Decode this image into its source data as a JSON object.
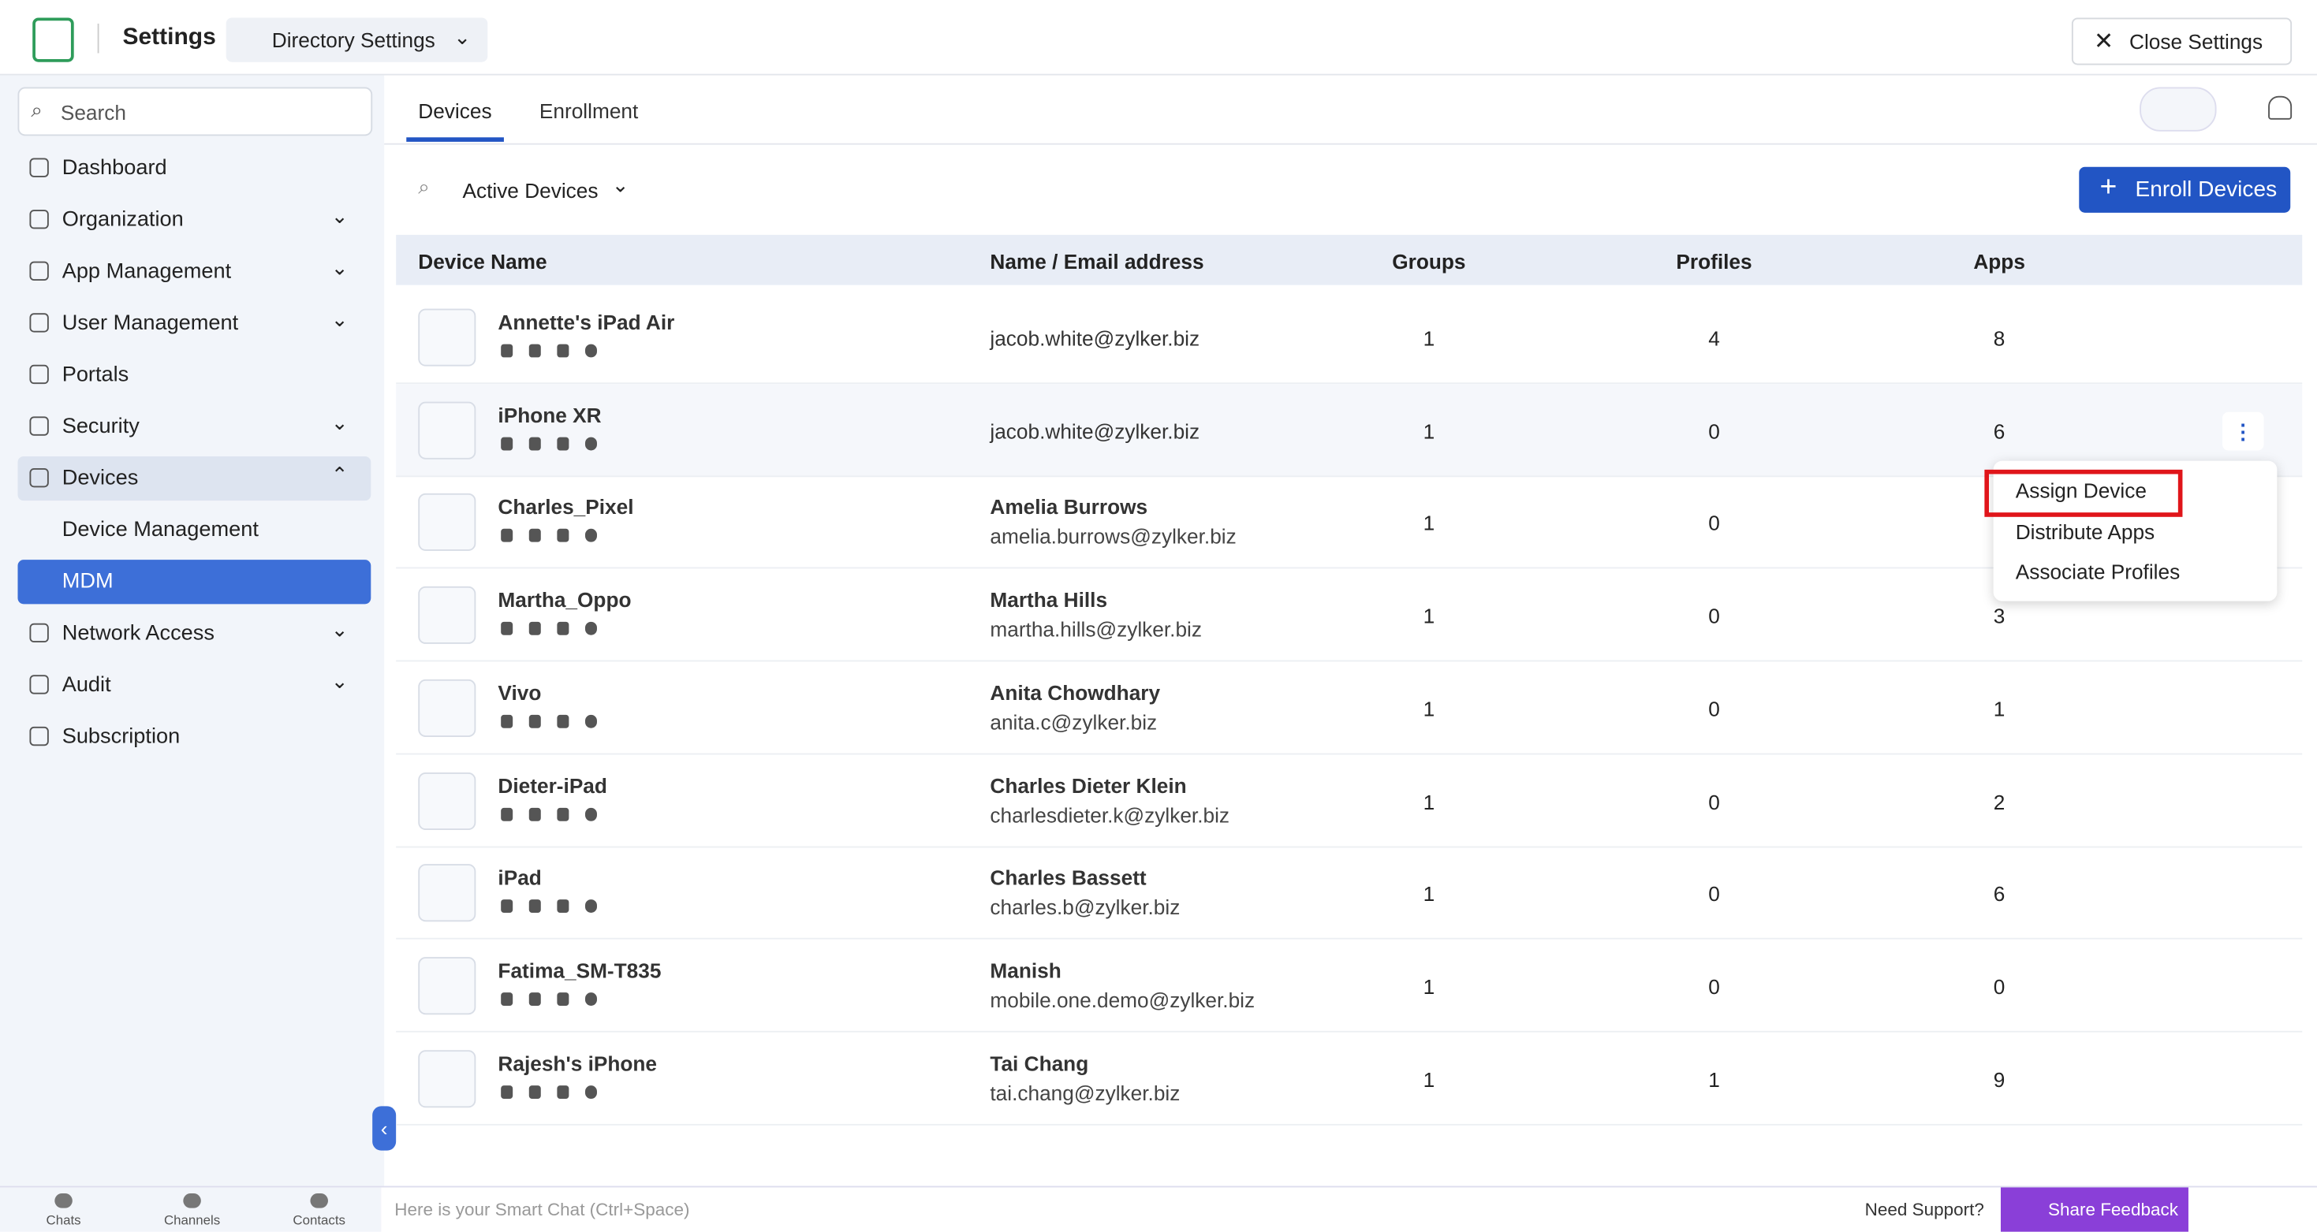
{
  "header": {
    "app": "Settings",
    "directory": "Directory Settings",
    "close": "Close Settings"
  },
  "sidebar": {
    "search": "Search",
    "items": [
      {
        "label": "Dashboard",
        "expand": false
      },
      {
        "label": "Organization",
        "expand": true
      },
      {
        "label": "App Management",
        "expand": true
      },
      {
        "label": "User Management",
        "expand": true
      },
      {
        "label": "Portals",
        "expand": false
      },
      {
        "label": "Security",
        "expand": true
      },
      {
        "label": "Devices",
        "expand": true,
        "open": true
      },
      {
        "label": "Device Management",
        "sub": true
      },
      {
        "label": "MDM",
        "sub": true,
        "active": true
      },
      {
        "label": "Network Access",
        "expand": true
      },
      {
        "label": "Audit",
        "expand": true
      },
      {
        "label": "Subscription",
        "expand": false
      }
    ]
  },
  "tabs": [
    "Devices",
    "Enrollment"
  ],
  "filter": "Active Devices",
  "enroll_button": "Enroll Devices",
  "table": {
    "columns": [
      "Device Name",
      "Name / Email address",
      "Groups",
      "Profiles",
      "Apps"
    ],
    "rows": [
      {
        "device": "Annette's iPad Air",
        "name": null,
        "email": "jacob.white@zylker.biz",
        "groups": 1,
        "profiles": 4,
        "apps": 8
      },
      {
        "device": "iPhone XR",
        "name": null,
        "email": "jacob.white@zylker.biz",
        "groups": 1,
        "profiles": 0,
        "apps": 6
      },
      {
        "device": "Charles_Pixel",
        "name": "Amelia Burrows",
        "email": "amelia.burrows@zylker.biz",
        "groups": 1,
        "profiles": 0,
        "apps": null
      },
      {
        "device": "Martha_Oppo",
        "name": "Martha Hills",
        "email": "martha.hills@zylker.biz",
        "groups": 1,
        "profiles": 0,
        "apps": 3
      },
      {
        "device": "Vivo",
        "name": "Anita Chowdhary",
        "email": "anita.c@zylker.biz",
        "groups": 1,
        "profiles": 0,
        "apps": 1
      },
      {
        "device": "Dieter-iPad",
        "name": "Charles Dieter Klein",
        "email": "charlesdieter.k@zylker.biz",
        "groups": 1,
        "profiles": 0,
        "apps": 2
      },
      {
        "device": "iPad",
        "name": "Charles Bassett",
        "email": "charles.b@zylker.biz",
        "groups": 1,
        "profiles": 0,
        "apps": 6
      },
      {
        "device": "Fatima_SM-T835",
        "name": "Manish",
        "email": "mobile.one.demo@zylker.biz",
        "groups": 1,
        "profiles": 0,
        "apps": 0
      },
      {
        "device": "Rajesh's iPhone",
        "name": "Tai Chang",
        "email": "tai.chang@zylker.biz",
        "groups": 1,
        "profiles": 1,
        "apps": 9
      }
    ]
  },
  "context_menu": [
    "Assign Device",
    "Distribute Apps",
    "Associate Profiles"
  ],
  "bottom_bar": {
    "tabs": [
      "Chats",
      "Channels",
      "Contacts"
    ],
    "chat_hint": "Here is your Smart Chat (Ctrl+Space)",
    "support": "Need Support?",
    "feedback": "Share Feedback"
  }
}
